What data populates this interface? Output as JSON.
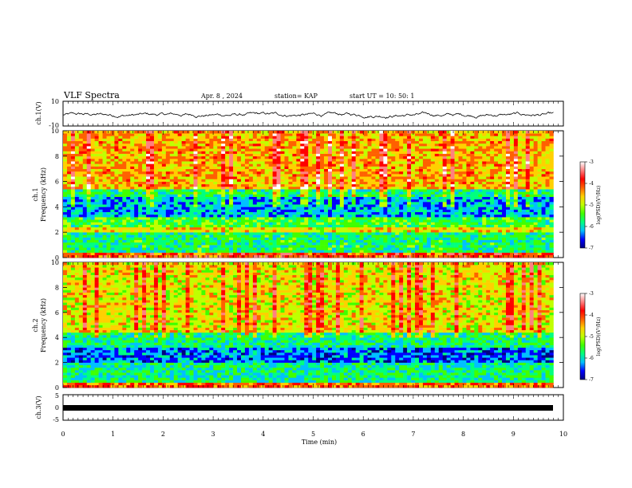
{
  "header": {
    "title": "VLF Spectra",
    "date": "Apr. 8  , 2024",
    "station": "station= KAP",
    "start": "start  UT  =   10: 50: 1"
  },
  "chart_data": [
    {
      "type": "line",
      "panel": "ch1-waveform",
      "ylabel": "ch.1(V)",
      "ylim": [
        -10,
        10
      ],
      "yticks": [
        "10",
        "-10"
      ],
      "description_values": "noisy waveform around -1 V, amplitude roughly +/-4 V",
      "x": [
        0,
        1,
        2,
        3,
        4,
        5,
        6,
        7,
        8,
        9,
        9.8
      ],
      "y": [
        -1,
        0,
        1,
        -2,
        0,
        -1,
        -1,
        0,
        1,
        -1,
        -1
      ]
    },
    {
      "type": "heatmap",
      "panel": "ch1-spectrogram",
      "ylabel": "ch.1\nFrequency  (kHz)",
      "ylim": [
        0,
        10
      ],
      "yticks": [
        "0",
        "2",
        "4",
        "6",
        "8",
        "10"
      ],
      "colorbar": {
        "label": "log(PSD)(V²/Hz)",
        "range": [
          -7,
          -3
        ],
        "ticks": [
          "-3",
          "-4",
          "-5",
          "-6",
          "-7"
        ],
        "colors": [
          "#000080",
          "#0000ff",
          "#00c0ff",
          "#00ff80",
          "#40ff00",
          "#c0ff00",
          "#ffd000",
          "#ff6000",
          "#ff0000",
          "#ff8080",
          "#ffffff"
        ]
      },
      "bands_khz": [
        [
          0,
          0.5,
          -3.8
        ],
        [
          0.5,
          2,
          -5.5
        ],
        [
          2,
          2.4,
          -4.5
        ],
        [
          2.4,
          3.2,
          -5.3
        ],
        [
          3.2,
          4.9,
          -6.0
        ],
        [
          4.9,
          5.5,
          -5.5
        ],
        [
          5.5,
          10,
          -4.3
        ]
      ]
    },
    {
      "type": "heatmap",
      "panel": "ch2-spectrogram",
      "ylabel": "ch.2\nFrequency  (kHz)",
      "ylim": [
        0,
        10
      ],
      "yticks": [
        "0",
        "2",
        "4",
        "6",
        "8",
        "10"
      ],
      "colorbar": {
        "label": "log(PSD)(V²/Hz)",
        "range": [
          -7,
          -3
        ],
        "ticks": [
          "-3",
          "-4",
          "-5",
          "-6",
          "-7"
        ]
      },
      "bands_khz": [
        [
          0,
          0.5,
          -4.0
        ],
        [
          0.5,
          2,
          -5.6
        ],
        [
          2,
          3.3,
          -6.2
        ],
        [
          3.3,
          4.4,
          -5.6
        ],
        [
          4.4,
          10,
          -4.6
        ]
      ]
    },
    {
      "type": "line",
      "panel": "ch3-waveform",
      "ylabel": "ch.3(V)",
      "ylim": [
        -5,
        5
      ],
      "yticks": [
        "5",
        "0",
        "-5"
      ],
      "x": [
        0,
        9.8
      ],
      "y": [
        0,
        0
      ]
    }
  ],
  "x_axis": {
    "label": "Time  (min)",
    "range": [
      0,
      10
    ],
    "ticks": [
      "0",
      "1",
      "2",
      "3",
      "4",
      "5",
      "6",
      "7",
      "8",
      "9",
      "10"
    ]
  }
}
